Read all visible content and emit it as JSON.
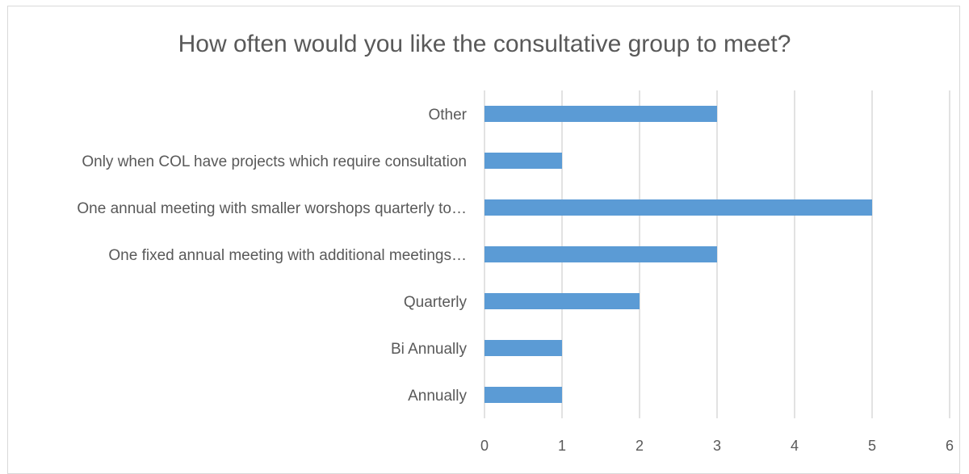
{
  "chart_data": {
    "type": "bar",
    "orientation": "horizontal",
    "title": "How often would you like the consultative group to meet?",
    "categories": [
      "Other",
      "Only when COL have projects which require consultation",
      "One annual meeting with smaller worshops quarterly to…",
      "One fixed annual meeting with additional meetings…",
      "Quarterly",
      "Bi Annually",
      "Annually"
    ],
    "values": [
      3,
      1,
      5,
      3,
      2,
      1,
      1
    ],
    "xlim": [
      0,
      6
    ],
    "xticks": [
      "0",
      "1",
      "2",
      "3",
      "4",
      "5",
      "6"
    ],
    "grid": true,
    "legend": "none",
    "bar_color": "#5b9bd5",
    "grid_color": "#d9d9d9"
  }
}
